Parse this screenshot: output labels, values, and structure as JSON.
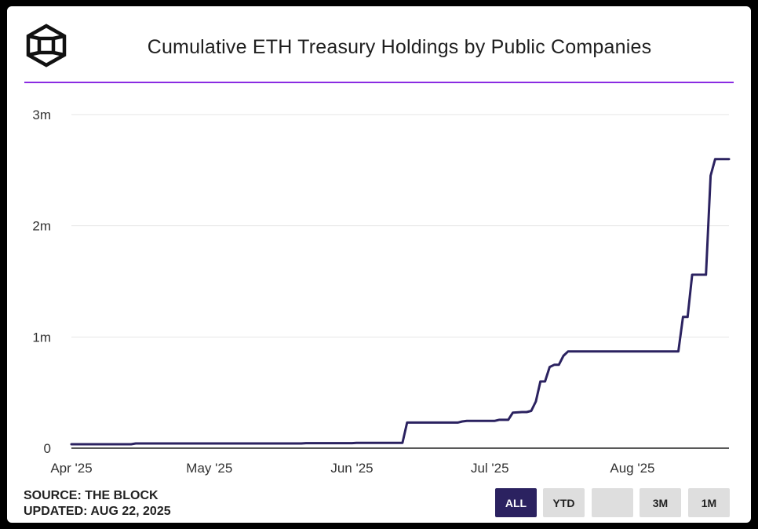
{
  "title": "Cumulative ETH Treasury Holdings by Public Companies",
  "footer": {
    "source": "SOURCE: THE BLOCK",
    "updated": "UPDATED: AUG 22, 2025"
  },
  "range_buttons": [
    {
      "label": "ALL",
      "active": true
    },
    {
      "label": "YTD",
      "active": false
    },
    {
      "label": "",
      "active": false
    },
    {
      "label": "3M",
      "active": false
    },
    {
      "label": "1M",
      "active": false
    }
  ],
  "colors": {
    "line": "#2b2260",
    "accent_rule": "#8a2be2",
    "active_button": "#2b2260"
  },
  "chart_data": {
    "type": "line",
    "title": "Cumulative ETH Treasury Holdings by Public Companies",
    "xlabel": "",
    "ylabel": "",
    "xlim": [
      "2025-04-01",
      "2025-08-22"
    ],
    "ylim": [
      0,
      3000000
    ],
    "grid": true,
    "y_ticks": [
      {
        "value": 0,
        "label": "0"
      },
      {
        "value": 1000000,
        "label": "1m"
      },
      {
        "value": 2000000,
        "label": "2m"
      },
      {
        "value": 3000000,
        "label": "3m"
      }
    ],
    "x_ticks": [
      {
        "date": "2025-04-01",
        "label": "Apr '25"
      },
      {
        "date": "2025-05-01",
        "label": "May '25"
      },
      {
        "date": "2025-06-01",
        "label": "Jun '25"
      },
      {
        "date": "2025-07-01",
        "label": "Jul '25"
      },
      {
        "date": "2025-08-01",
        "label": "Aug '25"
      }
    ],
    "series": [
      {
        "x": [
          "2025-04-01",
          "2025-04-14",
          "2025-04-15",
          "2025-05-21",
          "2025-05-22",
          "2025-06-01",
          "2025-06-02",
          "2025-06-12",
          "2025-06-13",
          "2025-06-24",
          "2025-06-25",
          "2025-06-26",
          "2025-06-27",
          "2025-07-02",
          "2025-07-03",
          "2025-07-05",
          "2025-07-06",
          "2025-07-08",
          "2025-07-09",
          "2025-07-10",
          "2025-07-11",
          "2025-07-12",
          "2025-07-13",
          "2025-07-14",
          "2025-07-15",
          "2025-07-16",
          "2025-07-17",
          "2025-07-18",
          "2025-07-19",
          "2025-08-11",
          "2025-08-12",
          "2025-08-13",
          "2025-08-14",
          "2025-08-17",
          "2025-08-18",
          "2025-08-19",
          "2025-08-20",
          "2025-08-22"
        ],
        "y": [
          35000,
          35000,
          42000,
          42000,
          45000,
          45000,
          48000,
          48000,
          230000,
          230000,
          240000,
          245000,
          245000,
          245000,
          255000,
          255000,
          320000,
          325000,
          325000,
          335000,
          420000,
          600000,
          600000,
          730000,
          750000,
          750000,
          830000,
          870000,
          870000,
          870000,
          1180000,
          1180000,
          1560000,
          1560000,
          2450000,
          2600000,
          2600000,
          2600000
        ]
      }
    ]
  }
}
